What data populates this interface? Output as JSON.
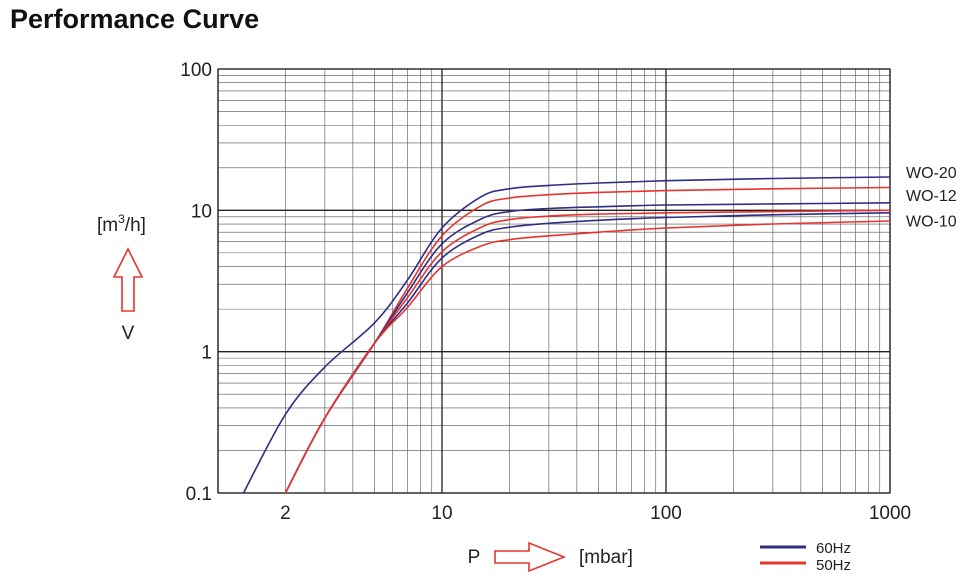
{
  "page": {
    "title": "Performance Curve"
  },
  "chart_data": {
    "type": "line",
    "title": "Performance Curve",
    "x_scale": "log",
    "y_scale": "log",
    "xlim": [
      1,
      1000
    ],
    "ylim": [
      0.1,
      100
    ],
    "grid": true,
    "x_ticks": [
      {
        "value": 2,
        "label": "2"
      },
      {
        "value": 10,
        "label": "10"
      },
      {
        "value": 100,
        "label": "100"
      },
      {
        "value": 1000,
        "label": "1000"
      }
    ],
    "y_ticks": [
      {
        "value": 0.1,
        "label": "0.1"
      },
      {
        "value": 1,
        "label": "1"
      },
      {
        "value": 10,
        "label": "10"
      },
      {
        "value": 100,
        "label": "100"
      }
    ],
    "xlabel": {
      "symbol": "P",
      "unit": "[mbar]"
    },
    "ylabel": {
      "symbol": "V",
      "unit_prefix": "[m",
      "unit_sup": "3",
      "unit_suffix": "/h]"
    },
    "legend": [
      {
        "label": "60Hz",
        "color": "#2e2e84"
      },
      {
        "label": "50Hz",
        "color": "#e8342e"
      }
    ],
    "colors": {
      "60Hz": "#2e2e84",
      "50Hz": "#e8342e",
      "arrow": "#e8342e"
    },
    "series": [
      {
        "name": "WO-20",
        "freq": "60Hz",
        "color": "#2e2e84",
        "points": [
          [
            1.3,
            0.1
          ],
          [
            2,
            0.36
          ],
          [
            3,
            0.78
          ],
          [
            5,
            1.6
          ],
          [
            7,
            3.2
          ],
          [
            10,
            7.5
          ],
          [
            15,
            12.5
          ],
          [
            20,
            14.2
          ],
          [
            30,
            15
          ],
          [
            50,
            15.6
          ],
          [
            100,
            16.2
          ],
          [
            300,
            16.8
          ],
          [
            1000,
            17.2
          ]
        ]
      },
      {
        "name": "WO-20",
        "freq": "50Hz",
        "color": "#e8342e",
        "points": [
          [
            2,
            0.1
          ],
          [
            3,
            0.34
          ],
          [
            5,
            1.15
          ],
          [
            7,
            2.8
          ],
          [
            10,
            6.6
          ],
          [
            15,
            10.8
          ],
          [
            20,
            12.2
          ],
          [
            30,
            12.9
          ],
          [
            50,
            13.4
          ],
          [
            100,
            13.8
          ],
          [
            300,
            14.2
          ],
          [
            1000,
            14.5
          ]
        ]
      },
      {
        "name": "WO-12",
        "freq": "60Hz",
        "color": "#2e2e84",
        "points": [
          [
            2,
            0.1
          ],
          [
            3,
            0.34
          ],
          [
            5,
            1.15
          ],
          [
            7,
            2.6
          ],
          [
            10,
            5.8
          ],
          [
            15,
            8.7
          ],
          [
            20,
            9.8
          ],
          [
            30,
            10.3
          ],
          [
            50,
            10.6
          ],
          [
            100,
            10.9
          ],
          [
            300,
            11.1
          ],
          [
            1000,
            11.3
          ]
        ]
      },
      {
        "name": "WO-12",
        "freq": "50Hz",
        "color": "#e8342e",
        "points": [
          [
            2,
            0.1
          ],
          [
            3,
            0.34
          ],
          [
            5,
            1.15
          ],
          [
            7,
            2.4
          ],
          [
            10,
            5.1
          ],
          [
            15,
            7.6
          ],
          [
            20,
            8.6
          ],
          [
            30,
            9.1
          ],
          [
            50,
            9.4
          ],
          [
            100,
            9.6
          ],
          [
            300,
            9.8
          ],
          [
            1000,
            10.0
          ]
        ]
      },
      {
        "name": "WO-10",
        "freq": "60Hz",
        "color": "#2e2e84",
        "points": [
          [
            2,
            0.1
          ],
          [
            3,
            0.34
          ],
          [
            5,
            1.15
          ],
          [
            7,
            2.2
          ],
          [
            10,
            4.6
          ],
          [
            15,
            6.8
          ],
          [
            20,
            7.6
          ],
          [
            30,
            8.1
          ],
          [
            50,
            8.5
          ],
          [
            100,
            8.9
          ],
          [
            300,
            9.3
          ],
          [
            1000,
            9.6
          ]
        ]
      },
      {
        "name": "WO-10",
        "freq": "50Hz",
        "color": "#e8342e",
        "points": [
          [
            2,
            0.1
          ],
          [
            3,
            0.34
          ],
          [
            5,
            1.15
          ],
          [
            7,
            2.05
          ],
          [
            10,
            4.0
          ],
          [
            15,
            5.6
          ],
          [
            20,
            6.2
          ],
          [
            30,
            6.6
          ],
          [
            50,
            7.0
          ],
          [
            100,
            7.5
          ],
          [
            300,
            8.0
          ],
          [
            1000,
            8.4
          ]
        ]
      }
    ],
    "curve_labels": [
      {
        "text": "WO-20",
        "at": 18.6
      },
      {
        "text": "WO-12",
        "at": 12.8
      },
      {
        "text": "WO-10",
        "at": 8.5
      }
    ]
  }
}
